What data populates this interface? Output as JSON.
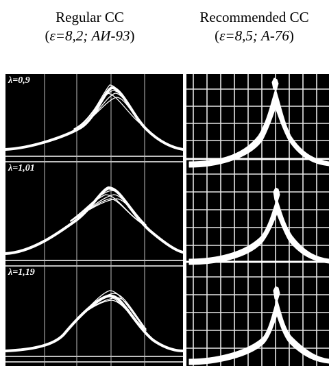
{
  "header": {
    "left": {
      "title": "Regular CC",
      "eps_label": "ε=",
      "eps_value": "8,2; АИ-93"
    },
    "right": {
      "title": "Recommended CC",
      "eps_label": "ε=",
      "eps_value": "8,5; А-76"
    }
  },
  "left_panel": {
    "labels": [
      "λ=0,9",
      "λ=1,01",
      "λ=1,19"
    ]
  },
  "colors": {
    "background": "#000000",
    "trace": "#ffffff",
    "grid": "#ffffff",
    "page": "#ffffff"
  }
}
